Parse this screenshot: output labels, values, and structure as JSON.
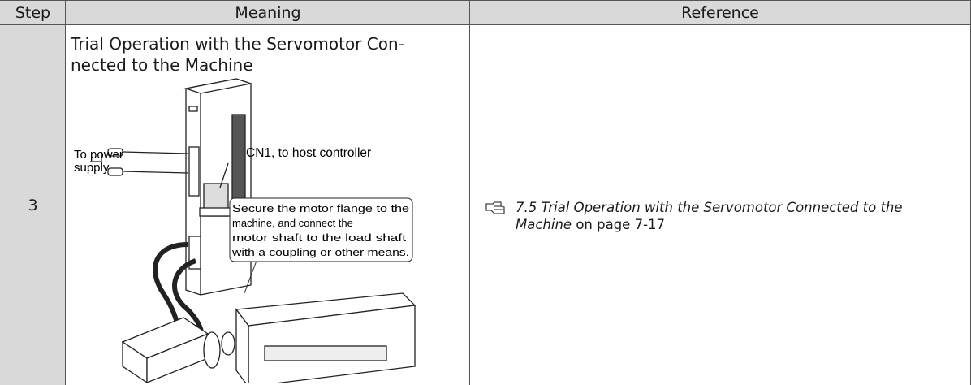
{
  "table": {
    "header": [
      "Step",
      "Meaning",
      "Reference"
    ],
    "rows": [
      {
        "step": "3",
        "meaning": {
          "title_lines": [
            "Trial Operation with the Servomotor Con-",
            "nected to the Machine"
          ],
          "figure": {
            "power_label": [
              "To power",
              "supply"
            ],
            "cn1_label": "CN1, to host controller",
            "callout_lines": [
              "Secure the motor flange to the",
              "machine, and connect the",
              "motor shaft to the load shaft",
              "with a coupling or other means."
            ]
          }
        },
        "reference": {
          "link": "7.5 Trial Operation with the Servomotor Connected to the Machine",
          "suffix": "on page 7-17"
        }
      }
    ]
  }
}
